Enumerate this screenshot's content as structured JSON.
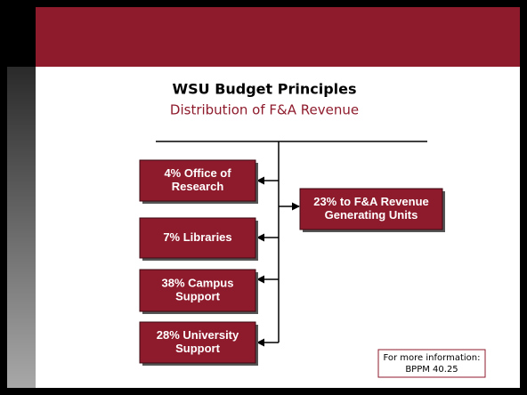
{
  "title": "WSU Budget Principles",
  "subtitle": "Distribution of F&A Revenue",
  "nodes": [
    {
      "lines": [
        "4% Office of",
        "Research"
      ]
    },
    {
      "lines": [
        "7% Libraries"
      ]
    },
    {
      "lines": [
        "38% Campus",
        "Support"
      ]
    },
    {
      "lines": [
        "28% University",
        "Support"
      ]
    },
    {
      "lines": [
        "23% to F&A Revenue",
        "Generating Units"
      ]
    }
  ],
  "note": {
    "lines": [
      "For more information:",
      "BPPM 40.25"
    ]
  }
}
